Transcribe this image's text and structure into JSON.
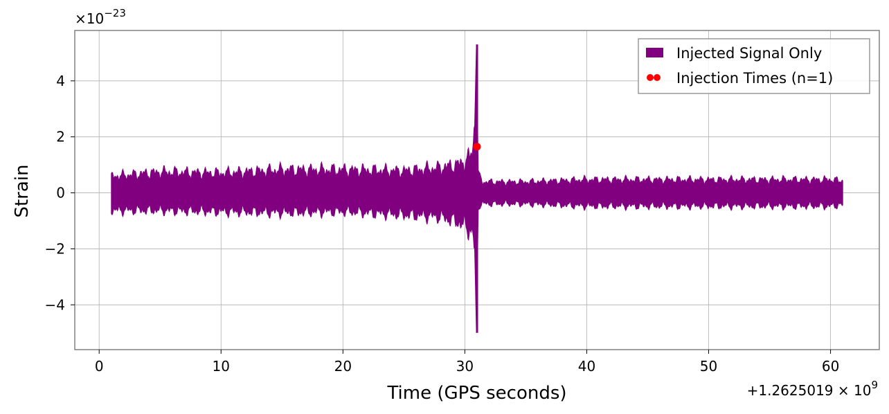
{
  "chart_data": {
    "type": "area",
    "title": "",
    "xlabel": "Time (GPS seconds)",
    "ylabel": "Strain",
    "x_offset_label": "+1.2625019 × 10",
    "x_offset_exp": "9",
    "y_scale_label": "×10",
    "y_scale_exp": "−23",
    "xlim": [
      -2,
      64
    ],
    "ylim": [
      -5.6,
      5.8
    ],
    "x_ticks": [
      0,
      10,
      20,
      30,
      40,
      50,
      60
    ],
    "x_tick_labels": [
      "0",
      "10",
      "20",
      "30",
      "40",
      "50",
      "60"
    ],
    "y_ticks": [
      -4,
      -2,
      0,
      2,
      4
    ],
    "y_tick_labels": [
      "−4",
      "−2",
      "0",
      "2",
      "4"
    ],
    "grid": true,
    "legend_position": "top-right",
    "series": [
      {
        "name": "Injected Signal Only",
        "color": "#800080",
        "envelope": {
          "t": [
            1.0,
            5.0,
            10.0,
            15.0,
            20.0,
            25.0,
            28.0,
            29.5,
            30.4,
            30.8,
            30.95,
            31.1,
            31.5,
            35.0,
            40.0,
            45.0,
            50.0,
            55.0,
            60.0,
            61.0
          ],
          "upper": [
            0.75,
            0.95,
            0.9,
            1.05,
            1.05,
            1.0,
            1.15,
            1.3,
            1.6,
            2.4,
            5.3,
            0.8,
            0.5,
            0.5,
            0.6,
            0.6,
            0.6,
            0.6,
            0.6,
            0.55
          ],
          "lower": [
            -0.8,
            -0.8,
            -0.85,
            -0.9,
            -0.85,
            -1.0,
            -1.1,
            -1.35,
            -1.7,
            -2.0,
            -5.0,
            -0.6,
            -0.5,
            -0.5,
            -0.6,
            -0.6,
            -0.6,
            -0.6,
            -0.6,
            -0.55
          ]
        }
      },
      {
        "name": "Injection Times (n=1)",
        "type": "scatter",
        "color": "#ff0000",
        "points": [
          {
            "x": 31.0,
            "y": 1.65
          }
        ]
      }
    ]
  }
}
